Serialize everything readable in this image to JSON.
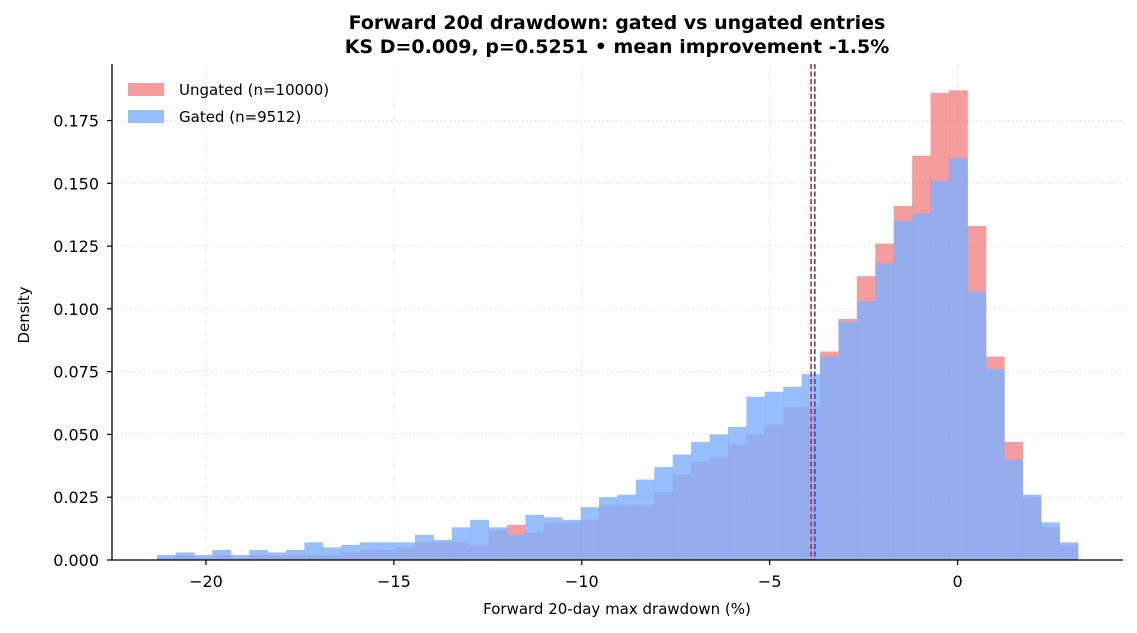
{
  "chart_data": {
    "type": "bar",
    "title": "Forward 20d drawdown: gated vs ungated entries",
    "subtitle": "KS D=0.009, p=0.5251 • mean improvement -1.5%",
    "xlabel": "Forward 20-day max drawdown (%)",
    "ylabel": "Density",
    "xlim": [
      -22.5,
      4.4
    ],
    "ylim": [
      0.0,
      0.1975
    ],
    "x_ticks": [
      -20,
      -15,
      -10,
      -5,
      0
    ],
    "x_tick_labels": [
      "−20",
      "−15",
      "−10",
      "−5",
      "0"
    ],
    "y_ticks": [
      0.0,
      0.025,
      0.05,
      0.075,
      0.1,
      0.125,
      0.15,
      0.175
    ],
    "y_tick_labels": [
      "0.000",
      "0.025",
      "0.050",
      "0.075",
      "0.100",
      "0.125",
      "0.150",
      "0.175"
    ],
    "grid": true,
    "legend_position": "top-left",
    "bin_start": -21.3,
    "bin_width": 0.49,
    "series": [
      {
        "name": "Ungated (n=10000)",
        "color": "#f28080",
        "values": [
          0.001,
          0.002,
          0.001,
          0.002,
          0.001,
          0.002,
          0.002,
          0.002,
          0.002,
          0.002,
          0.003,
          0.004,
          0.004,
          0.005,
          0.007,
          0.007,
          0.007,
          0.006,
          0.012,
          0.014,
          0.011,
          0.015,
          0.015,
          0.016,
          0.022,
          0.022,
          0.022,
          0.027,
          0.034,
          0.039,
          0.041,
          0.046,
          0.05,
          0.054,
          0.061,
          0.061,
          0.083,
          0.096,
          0.113,
          0.126,
          0.141,
          0.161,
          0.186,
          0.187,
          0.133,
          0.081,
          0.047,
          0.025,
          0.013,
          0.006
        ],
        "mean_line": -3.9
      },
      {
        "name": "Gated (n=9512)",
        "color": "#80b0ff",
        "values": [
          0.002,
          0.003,
          0.002,
          0.004,
          0.002,
          0.004,
          0.003,
          0.004,
          0.007,
          0.005,
          0.006,
          0.007,
          0.007,
          0.007,
          0.01,
          0.008,
          0.013,
          0.016,
          0.013,
          0.01,
          0.018,
          0.017,
          0.016,
          0.021,
          0.025,
          0.026,
          0.032,
          0.037,
          0.042,
          0.047,
          0.05,
          0.053,
          0.065,
          0.067,
          0.069,
          0.074,
          0.081,
          0.095,
          0.103,
          0.118,
          0.135,
          0.138,
          0.151,
          0.16,
          0.107,
          0.076,
          0.04,
          0.026,
          0.015,
          0.007
        ],
        "mean_line": -3.8
      }
    ],
    "mean_line_colors": [
      "#d62728",
      "#1f4fd6"
    ]
  }
}
